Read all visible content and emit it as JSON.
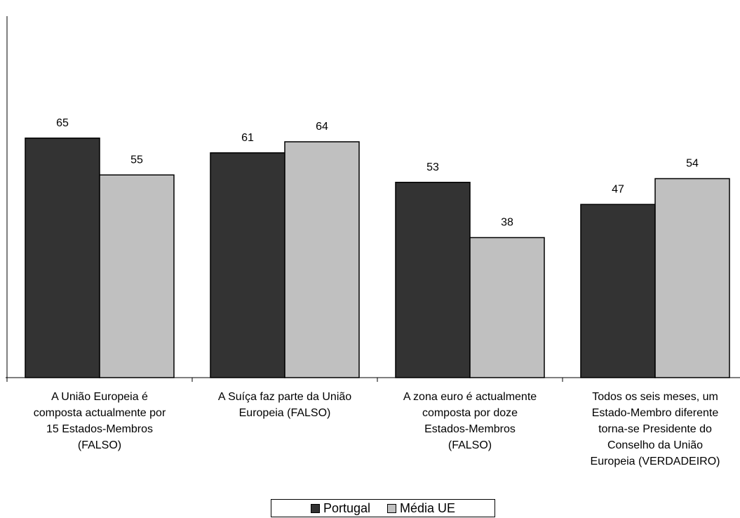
{
  "chart_data": {
    "type": "bar",
    "categories": [
      "A União Europeia é\ncomposta actualmente por\n15 Estados-Membros\n(FALSO)",
      "A Suíça faz parte da União\nEuropeia (FALSO)",
      "A zona euro é actualmente\ncomposta por doze\nEstados-Membros\n(FALSO)",
      "Todos os seis meses, um\nEstado-Membro diferente\ntorna-se Presidente do\nConselho da União\nEuropeia (VERDADEIRO)"
    ],
    "series": [
      {
        "name": "Portugal",
        "values": [
          65,
          61,
          53,
          47
        ],
        "color": "#333333"
      },
      {
        "name": "Média UE",
        "values": [
          55,
          64,
          38,
          54
        ],
        "color": "#c0c0c0"
      }
    ],
    "ylim": [
      0,
      100
    ],
    "grid": false,
    "legend_position": "bottom"
  }
}
